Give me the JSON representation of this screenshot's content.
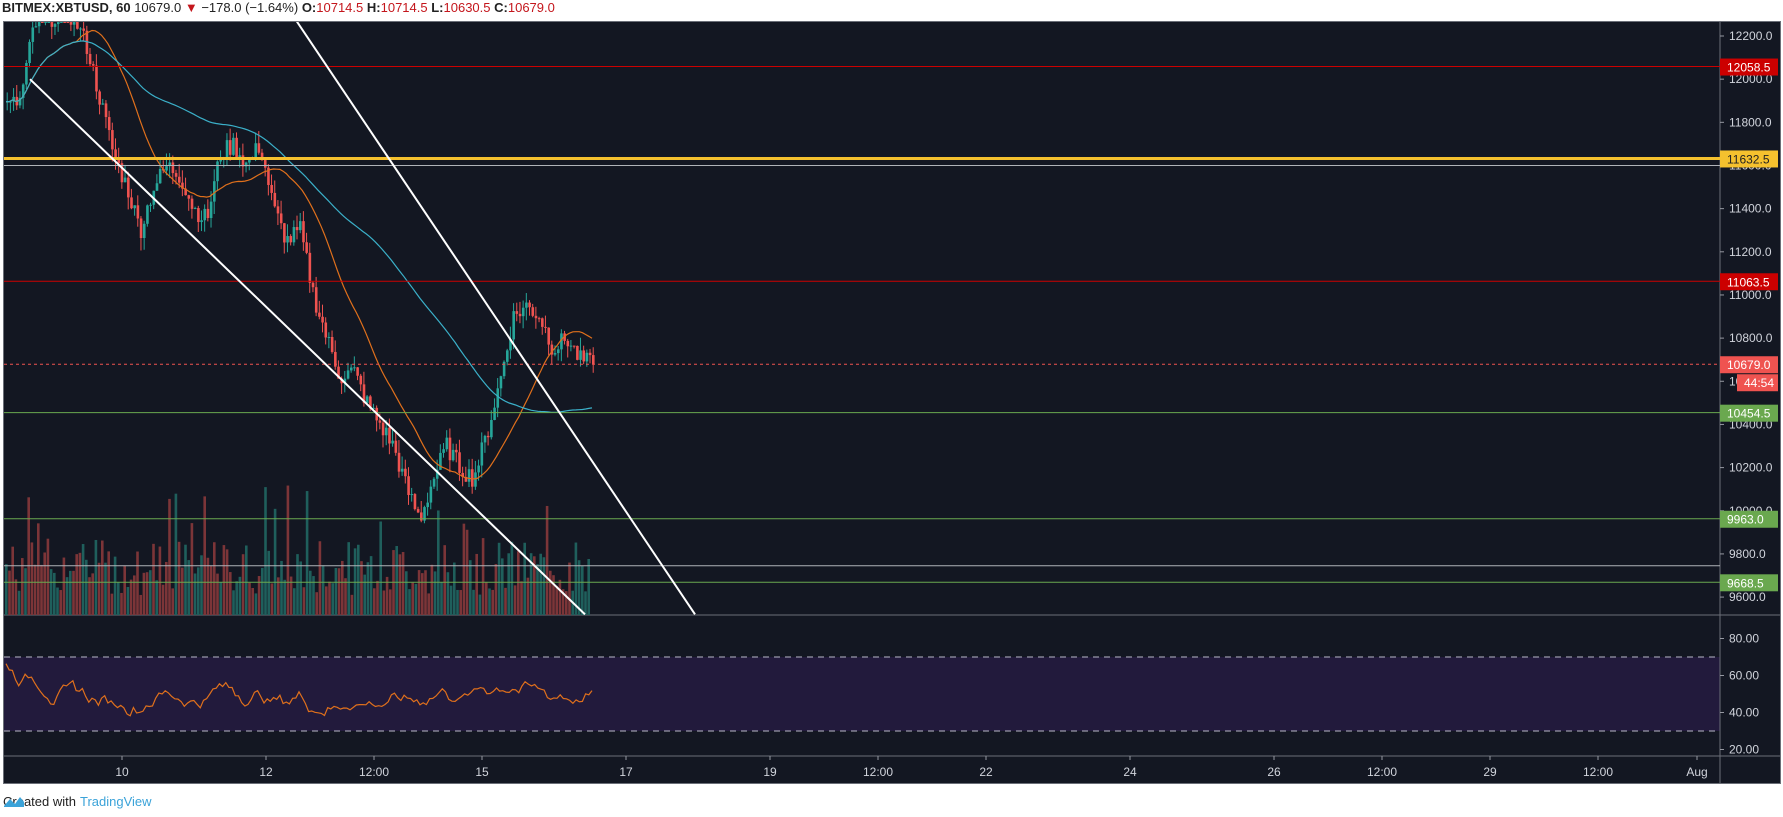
{
  "header": {
    "symbol": "BITMEX:XBTUSD, 60",
    "last": "10679.0",
    "change": "−178.0 (−1.64%)",
    "open_label": "O:",
    "open": "10714.5",
    "high_label": "H:",
    "high": "10714.5",
    "low_label": "L:",
    "low": "10630.5",
    "close_label": "C:",
    "close": "10679.0",
    "direction_icon": "triangle-down-icon"
  },
  "footer": {
    "created_with": "Created with",
    "brand": "TradingView"
  },
  "colors": {
    "background": "#131722",
    "up": "#26a69a",
    "down": "#ef5350",
    "ma_fast": "#e0701c",
    "ma_slow": "#3bb0c9",
    "rsi": "#e0701c",
    "rsi_band": "#221a3c"
  },
  "price_axis": {
    "ticks": [
      "12200.0",
      "12000.0",
      "11800.0",
      "11600.0",
      "11400.0",
      "11200.0",
      "11000.0",
      "10800.0",
      "10600.0",
      "10400.0",
      "10200.0",
      "10000.0",
      "9800.0",
      "9600.0"
    ],
    "labels": [
      {
        "value": "12058.5",
        "color": "#cc0000",
        "text_color": "#ffffff"
      },
      {
        "value": "11632.5",
        "color": "#f5c12e",
        "text_color": "#222222"
      },
      {
        "value": "11063.5",
        "color": "#cc0000",
        "text_color": "#ffffff"
      },
      {
        "value": "10679.0",
        "color": "#ef5350",
        "text_color": "#ffffff"
      },
      {
        "value": "44:54",
        "color": "#ef5350",
        "text_color": "#ffffff"
      },
      {
        "value": "10454.5",
        "color": "#6aa84f",
        "text_color": "#ffffff"
      },
      {
        "value": "9963.0",
        "color": "#6aa84f",
        "text_color": "#ffffff"
      },
      {
        "value": "9668.5",
        "color": "#6aa84f",
        "text_color": "#ffffff"
      }
    ]
  },
  "rsi_axis": {
    "ticks": [
      "80.00",
      "60.00",
      "40.00",
      "20.00"
    ]
  },
  "time_axis": {
    "ticks": [
      "10",
      "12",
      "12:00",
      "15",
      "17",
      "19",
      "12:00",
      "22",
      "24",
      "26",
      "12:00",
      "29",
      "12:00",
      "Aug"
    ]
  },
  "chart_data": {
    "type": "candlestick",
    "title": "BITMEX:XBTUSD, 60",
    "xlabel": "",
    "ylabel": "",
    "ylim": [
      9520,
      12280
    ],
    "x_ticks": [
      "10",
      "12",
      "12:00",
      "15",
      "17",
      "19",
      "12:00",
      "22",
      "24",
      "26",
      "12:00",
      "29",
      "12:00",
      "Aug"
    ],
    "y_ticks": [
      12200,
      12000,
      11800,
      11600,
      11400,
      11200,
      11000,
      10800,
      10600,
      10400,
      10200,
      10000,
      9800,
      9600
    ],
    "last_price": 10679.0,
    "ohlc_last": {
      "open": 10714.5,
      "high": 10714.5,
      "low": 10630.5,
      "close": 10679.0
    },
    "horizontal_levels": [
      {
        "price": 12058.5,
        "color": "#cc0000"
      },
      {
        "price": 11632.5,
        "color": "#f5c12e",
        "width": 3
      },
      {
        "price": 11600,
        "color": "#b0b3b8"
      },
      {
        "price": 11063.5,
        "color": "#cc0000"
      },
      {
        "price": 10679.0,
        "color": "#ef5350",
        "style": "dotted"
      },
      {
        "price": 10454.5,
        "color": "#6aa84f"
      },
      {
        "price": 9963.0,
        "color": "#6aa84f"
      },
      {
        "price": 9745,
        "color": "#b0b3b8"
      },
      {
        "price": 9668.5,
        "color": "#6aa84f"
      }
    ],
    "trendlines": [
      {
        "from": [
          30,
          12000
        ],
        "to": [
          585,
          9520
        ],
        "color": "#ffffff"
      },
      {
        "from": [
          295,
          12280
        ],
        "to": [
          695,
          9520
        ],
        "color": "#ffffff"
      }
    ],
    "price_path": [
      11870,
      11900,
      12250,
      12280,
      12300,
      12290,
      12150,
      11900,
      11650,
      11500,
      11300,
      11500,
      11600,
      11550,
      11400,
      11350,
      11650,
      11700,
      11600,
      11700,
      11400,
      11250,
      11300,
      11000,
      10800,
      10620,
      10650,
      10500,
      10400,
      10300,
      10100,
      9960,
      10150,
      10300,
      10200,
      10150,
      10350,
      10600,
      10900,
      10950,
      10900,
      10750,
      10800,
      10700,
      10679
    ],
    "series": [
      {
        "name": "Close",
        "values": [
          11870,
          11900,
          12250,
          12280,
          12300,
          12290,
          12150,
          11900,
          11650,
          11500,
          11300,
          11500,
          11600,
          11550,
          11400,
          11350,
          11650,
          11700,
          11600,
          11700,
          11400,
          11250,
          11300,
          11000,
          10800,
          10620,
          10650,
          10500,
          10400,
          10300,
          10100,
          9960,
          10150,
          10300,
          10200,
          10150,
          10350,
          10600,
          10900,
          10950,
          10900,
          10750,
          10800,
          10700,
          10679
        ]
      }
    ],
    "indicators": [
      {
        "name": "MA fast",
        "color": "#e0701c"
      },
      {
        "name": "MA slow",
        "color": "#3bb0c9"
      },
      {
        "name": "RSI",
        "color": "#e0701c",
        "levels": [
          70,
          30
        ],
        "range": [
          15,
          88
        ]
      }
    ]
  }
}
